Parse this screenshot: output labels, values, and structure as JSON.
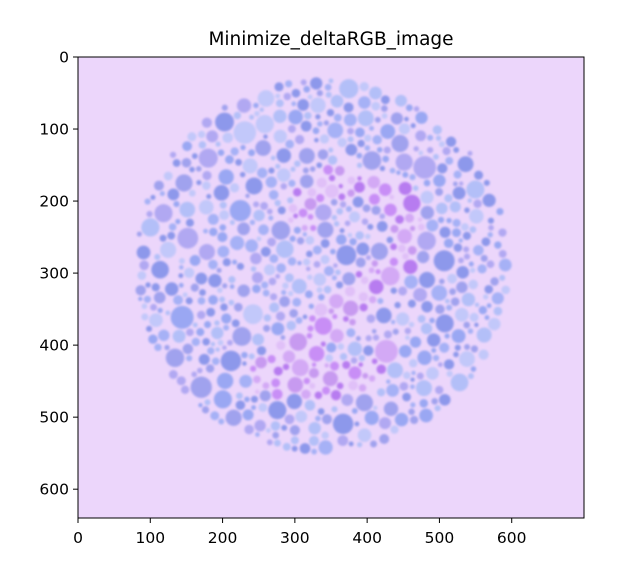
{
  "chart_data": {
    "type": "heatmap",
    "title": "Minimize_deltaRGB_image",
    "xlabel": "",
    "ylabel": "",
    "xlim": [
      0,
      700
    ],
    "ylim": [
      640,
      0
    ],
    "x_ticks": [
      0,
      100,
      200,
      300,
      400,
      500,
      600
    ],
    "y_ticks": [
      0,
      100,
      200,
      300,
      400,
      500,
      600
    ],
    "grid": false,
    "legend": "none",
    "image": {
      "description_type": "color-vision test plate",
      "plate_center": [
        338,
        290
      ],
      "plate_radius": 262,
      "background_color": "#ecd6fb",
      "dot_colors_figure": [
        "#c88ef6",
        "#b77cf0",
        "#d3a9f5",
        "#e0c0f8",
        "#c79af0"
      ],
      "dot_colors_background": [
        "#9aa7f3",
        "#a6b1f6",
        "#b3bff8",
        "#8d98eb",
        "#c2c8fa",
        "#a0a2ee",
        "#b1a8f2"
      ],
      "hidden_figure": "2"
    }
  }
}
